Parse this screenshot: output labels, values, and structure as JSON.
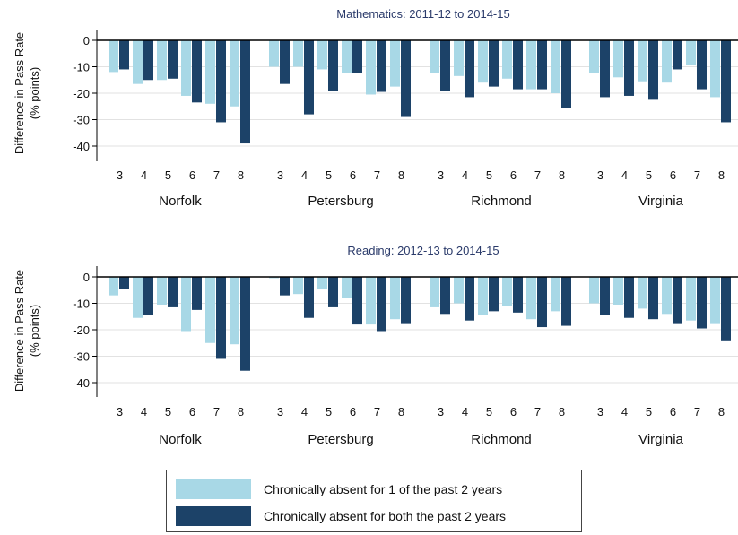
{
  "colors": {
    "series_light": "#a8d8e6",
    "series_dark": "#1c4268",
    "grid": "#e2e2e2"
  },
  "y_axis_title": [
    "Difference in Pass Rate",
    "(% points)"
  ],
  "legend": {
    "position": "bottom-center",
    "items": [
      {
        "label": "Chronically absent for 1 of the past 2 years",
        "color": "#a8d8e6"
      },
      {
        "label": "Chronically absent for both the past 2 years",
        "color": "#1c4268"
      }
    ]
  },
  "chart_data": [
    {
      "type": "bar",
      "title": "Mathematics: 2011-12 to 2014-15",
      "ylabel": "Difference in Pass Rate (% points)",
      "ylim": [
        -45,
        5
      ],
      "yticks": [
        0,
        -10,
        -20,
        -30,
        -40
      ],
      "grid": true,
      "groups": [
        "Norfolk",
        "Petersburg",
        "Richmond",
        "Virginia"
      ],
      "categories": [
        "3",
        "4",
        "5",
        "6",
        "7",
        "8"
      ],
      "series": [
        {
          "name": "Chronically absent for 1 of the past 2 years",
          "values": [
            [
              -12,
              -16.5,
              -15,
              -21,
              -24,
              -25
            ],
            [
              -10,
              -10,
              -11,
              -12.5,
              -20.5,
              -17.5
            ],
            [
              -12.5,
              -13.5,
              -16,
              -14.5,
              -18.5,
              -20
            ],
            [
              -12.5,
              -14,
              -15.5,
              -16,
              -9.5,
              -21.5
            ]
          ]
        },
        {
          "name": "Chronically absent for both the past 2 years",
          "values": [
            [
              -11,
              -15,
              -14.5,
              -23.5,
              -31,
              -39
            ],
            [
              -16.5,
              -28,
              -19,
              -12.5,
              -19.5,
              -29
            ],
            [
              -19,
              -21.5,
              -17.5,
              -18.5,
              -18.5,
              -25.5
            ],
            [
              -21.5,
              -21,
              -22.5,
              -11,
              -18.5,
              -31
            ]
          ]
        }
      ]
    },
    {
      "type": "bar",
      "title": "Reading: 2012-13 to 2014-15",
      "ylabel": "Difference in Pass Rate (% points)",
      "ylim": [
        -45,
        5
      ],
      "yticks": [
        0,
        -10,
        -20,
        -30,
        -40
      ],
      "grid": true,
      "groups": [
        "Norfolk",
        "Petersburg",
        "Richmond",
        "Virginia"
      ],
      "categories": [
        "3",
        "4",
        "5",
        "6",
        "7",
        "8"
      ],
      "series": [
        {
          "name": "Chronically absent for 1 of the past 2 years",
          "values": [
            [
              -7,
              -15.5,
              -10.5,
              -20.5,
              -25,
              -25.5
            ],
            [
              -0.5,
              -6.5,
              -4.5,
              -8,
              -18,
              -16
            ],
            [
              -11.5,
              -10,
              -14.5,
              -11,
              -16,
              -13
            ],
            [
              -10,
              -10.5,
              -12,
              -14,
              -16.5,
              -17.5
            ]
          ]
        },
        {
          "name": "Chronically absent for both the past 2 years",
          "values": [
            [
              -4.5,
              -14.5,
              -11.5,
              -12.5,
              -31,
              -35.5
            ],
            [
              -7,
              -15.5,
              -11.5,
              -18,
              -20.5,
              -17.5
            ],
            [
              -14,
              -16.5,
              -13,
              -13.5,
              -19,
              -18.5
            ],
            [
              -14.5,
              -15.5,
              -16,
              -17.5,
              -19.5,
              -24
            ]
          ]
        }
      ]
    }
  ]
}
